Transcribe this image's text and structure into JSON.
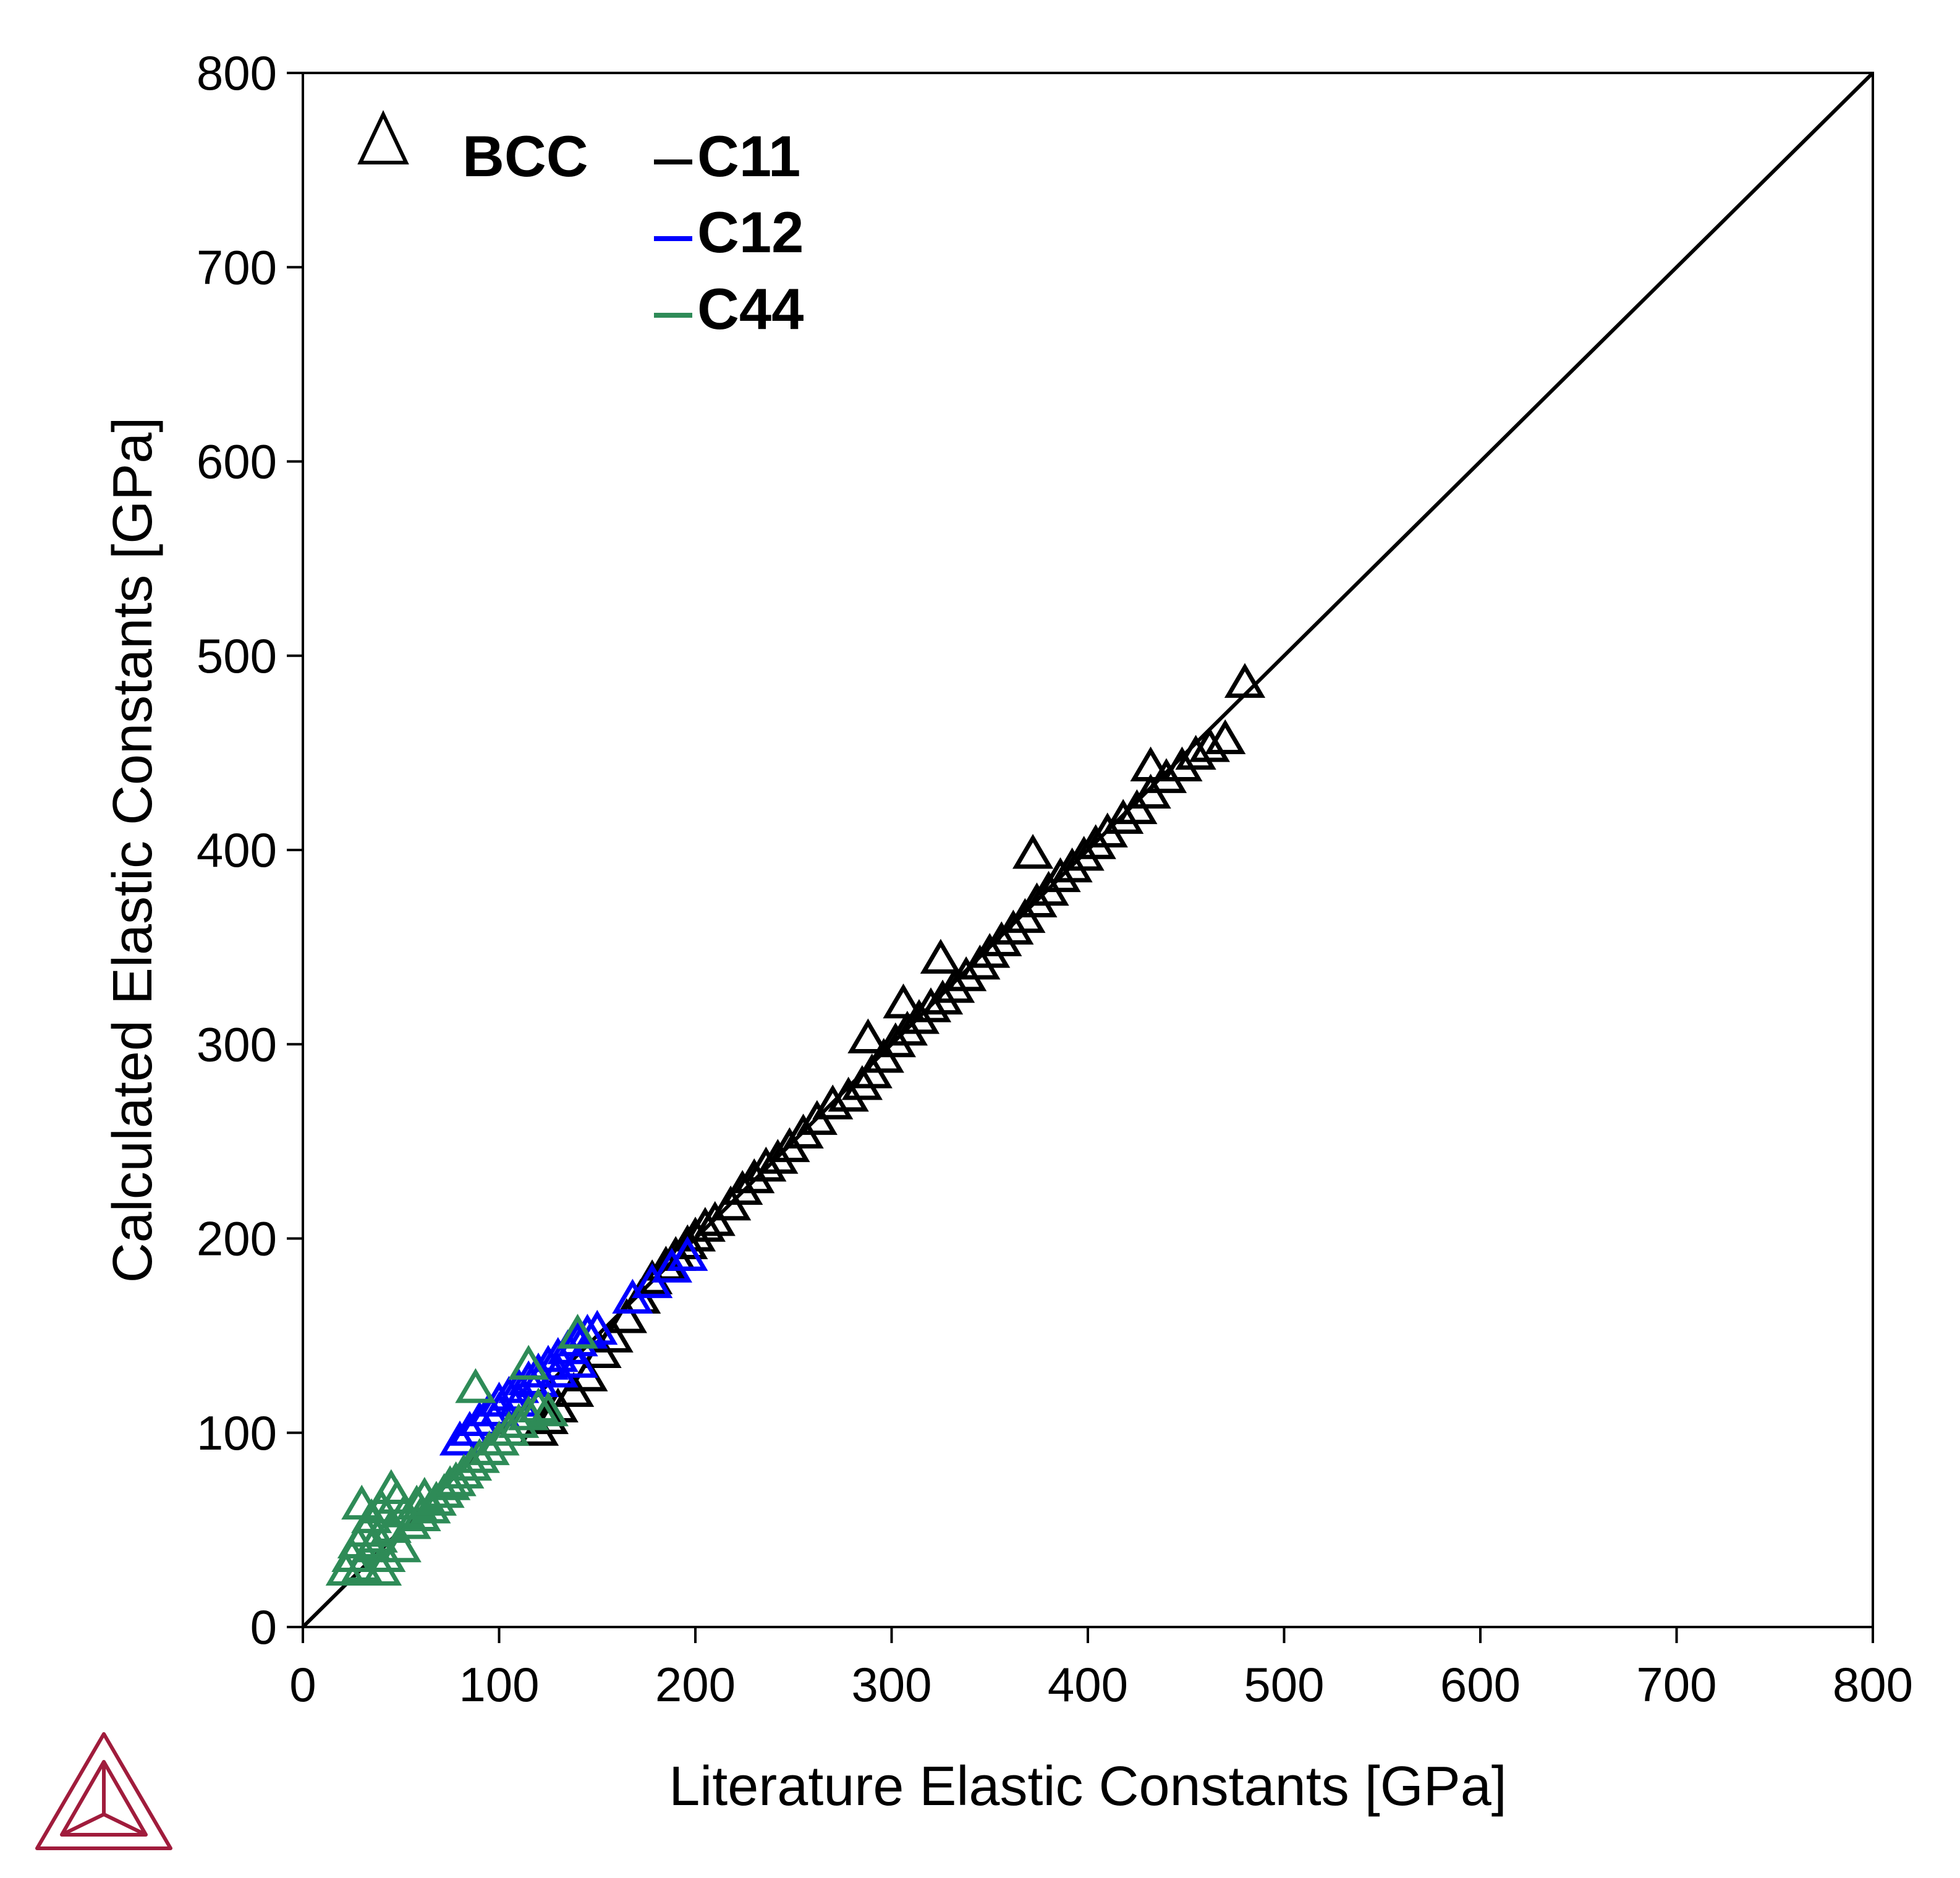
{
  "chart_data": {
    "type": "scatter",
    "title": "",
    "xlabel": "Literature Elastic Constants [GPa]",
    "ylabel": "Calculated Elastic Constants [GPa]",
    "xlim": [
      0,
      800
    ],
    "ylim": [
      0,
      800
    ],
    "xticks": [
      "0",
      "100",
      "200",
      "300",
      "400",
      "500",
      "600",
      "700",
      "800"
    ],
    "yticks": [
      "0",
      "100",
      "200",
      "300",
      "400",
      "500",
      "600",
      "700",
      "800"
    ],
    "grid": false,
    "reference_line": {
      "from": [
        0,
        0
      ],
      "to": [
        800,
        800
      ],
      "color": "#000000"
    },
    "marker": "triangle",
    "legend": {
      "placement": "top-left",
      "marker_label": "BCC",
      "entries": [
        {
          "label": "C11",
          "color": "#000000"
        },
        {
          "label": "C12",
          "color": "#0000ff"
        },
        {
          "label": "C44",
          "color": "#2e8b57"
        }
      ]
    },
    "series": [
      {
        "name": "C11",
        "color": "#000000",
        "points": [
          [
            120,
            100
          ],
          [
            125,
            106
          ],
          [
            130,
            112
          ],
          [
            138,
            120
          ],
          [
            145,
            128
          ],
          [
            152,
            140
          ],
          [
            158,
            148
          ],
          [
            165,
            158
          ],
          [
            172,
            168
          ],
          [
            178,
            178
          ],
          [
            185,
            185
          ],
          [
            190,
            190
          ],
          [
            196,
            196
          ],
          [
            200,
            200
          ],
          [
            205,
            205
          ],
          [
            210,
            208
          ],
          [
            218,
            216
          ],
          [
            224,
            224
          ],
          [
            230,
            230
          ],
          [
            236,
            236
          ],
          [
            242,
            240
          ],
          [
            248,
            246
          ],
          [
            255,
            253
          ],
          [
            262,
            260
          ],
          [
            270,
            268
          ],
          [
            278,
            272
          ],
          [
            285,
            278
          ],
          [
            290,
            284
          ],
          [
            296,
            292
          ],
          [
            302,
            300
          ],
          [
            308,
            306
          ],
          [
            314,
            312
          ],
          [
            320,
            318
          ],
          [
            326,
            322
          ],
          [
            332,
            328
          ],
          [
            338,
            334
          ],
          [
            345,
            340
          ],
          [
            350,
            346
          ],
          [
            356,
            352
          ],
          [
            362,
            358
          ],
          [
            368,
            364
          ],
          [
            374,
            372
          ],
          [
            380,
            378
          ],
          [
            386,
            385
          ],
          [
            392,
            390
          ],
          [
            398,
            396
          ],
          [
            404,
            402
          ],
          [
            410,
            408
          ],
          [
            418,
            415
          ],
          [
            425,
            420
          ],
          [
            432,
            428
          ],
          [
            440,
            436
          ],
          [
            448,
            442
          ],
          [
            455,
            448
          ],
          [
            462,
            452
          ],
          [
            470,
            456
          ],
          [
            288,
            302
          ],
          [
            306,
            320
          ],
          [
            325,
            343
          ],
          [
            372,
            397
          ],
          [
            432,
            442
          ],
          [
            480,
            485
          ]
        ]
      },
      {
        "name": "C12",
        "color": "#0000ff",
        "points": [
          [
            80,
            95
          ],
          [
            85,
            100
          ],
          [
            90,
            105
          ],
          [
            95,
            110
          ],
          [
            100,
            115
          ],
          [
            105,
            118
          ],
          [
            110,
            122
          ],
          [
            115,
            126
          ],
          [
            120,
            130
          ],
          [
            125,
            134
          ],
          [
            130,
            138
          ],
          [
            135,
            142
          ],
          [
            140,
            146
          ],
          [
            145,
            150
          ],
          [
            150,
            152
          ],
          [
            100,
            110
          ],
          [
            110,
            115
          ],
          [
            120,
            125
          ],
          [
            130,
            130
          ],
          [
            140,
            135
          ],
          [
            168,
            168
          ],
          [
            178,
            176
          ],
          [
            188,
            184
          ],
          [
            196,
            190
          ]
        ]
      },
      {
        "name": "C44",
        "color": "#2e8b57",
        "points": [
          [
            22,
            28
          ],
          [
            25,
            35
          ],
          [
            28,
            42
          ],
          [
            30,
            30
          ],
          [
            32,
            48
          ],
          [
            35,
            55
          ],
          [
            38,
            45
          ],
          [
            40,
            60
          ],
          [
            42,
            35
          ],
          [
            45,
            50
          ],
          [
            48,
            65
          ],
          [
            50,
            40
          ],
          [
            52,
            58
          ],
          [
            55,
            52
          ],
          [
            58,
            62
          ],
          [
            60,
            56
          ],
          [
            62,
            66
          ],
          [
            65,
            60
          ],
          [
            68,
            64
          ],
          [
            72,
            68
          ],
          [
            75,
            72
          ],
          [
            78,
            74
          ],
          [
            82,
            78
          ],
          [
            86,
            82
          ],
          [
            90,
            86
          ],
          [
            95,
            90
          ],
          [
            100,
            95
          ],
          [
            105,
            100
          ],
          [
            110,
            104
          ],
          [
            115,
            108
          ],
          [
            120,
            112
          ],
          [
            125,
            110
          ],
          [
            30,
            62
          ],
          [
            45,
            70
          ],
          [
            35,
            40
          ],
          [
            40,
            28
          ],
          [
            88,
            122
          ],
          [
            115,
            134
          ],
          [
            140,
            150
          ]
        ]
      }
    ]
  }
}
